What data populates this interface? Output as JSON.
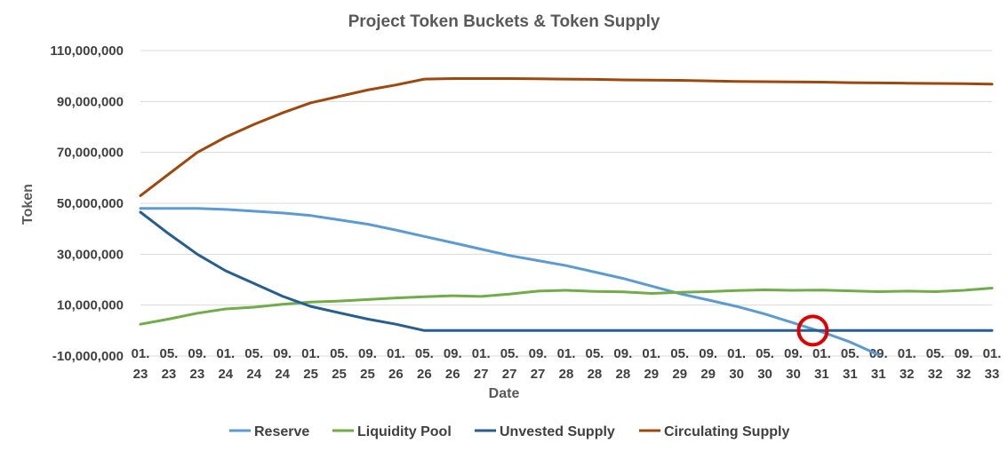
{
  "chart_data": {
    "type": "line",
    "title": "Project Token Buckets & Token Supply",
    "xlabel": "Date",
    "ylabel": "Token",
    "ylim": [
      -10000000,
      110000000
    ],
    "y_ticks": [
      "-10,000,000",
      "10,000,000",
      "30,000,000",
      "50,000,000",
      "70,000,000",
      "90,000,000",
      "110,000,000"
    ],
    "x_ticks": [
      {
        "month": "01.",
        "year": "23"
      },
      {
        "month": "05.",
        "year": "23"
      },
      {
        "month": "09.",
        "year": "23"
      },
      {
        "month": "01.",
        "year": "24"
      },
      {
        "month": "05.",
        "year": "24"
      },
      {
        "month": "09.",
        "year": "24"
      },
      {
        "month": "01.",
        "year": "25"
      },
      {
        "month": "05.",
        "year": "25"
      },
      {
        "month": "09.",
        "year": "25"
      },
      {
        "month": "01.",
        "year": "26"
      },
      {
        "month": "05.",
        "year": "26"
      },
      {
        "month": "09.",
        "year": "26"
      },
      {
        "month": "01.",
        "year": "27"
      },
      {
        "month": "05.",
        "year": "27"
      },
      {
        "month": "09.",
        "year": "27"
      },
      {
        "month": "01.",
        "year": "28"
      },
      {
        "month": "05.",
        "year": "28"
      },
      {
        "month": "09.",
        "year": "28"
      },
      {
        "month": "01.",
        "year": "29"
      },
      {
        "month": "05.",
        "year": "29"
      },
      {
        "month": "09.",
        "year": "29"
      },
      {
        "month": "01.",
        "year": "30"
      },
      {
        "month": "05.",
        "year": "30"
      },
      {
        "month": "09.",
        "year": "30"
      },
      {
        "month": "01.",
        "year": "31"
      },
      {
        "month": "05.",
        "year": "31"
      },
      {
        "month": "09.",
        "year": "31"
      },
      {
        "month": "01.",
        "year": "32"
      },
      {
        "month": "05.",
        "year": "32"
      },
      {
        "month": "09.",
        "year": "32"
      },
      {
        "month": "01.",
        "year": "33"
      }
    ],
    "grid": true,
    "legend_position": "bottom",
    "x": [
      "01.23",
      "05.23",
      "09.23",
      "01.24",
      "05.24",
      "09.24",
      "01.25",
      "05.25",
      "09.25",
      "01.26",
      "05.26",
      "09.26",
      "01.27",
      "05.27",
      "09.27",
      "01.28",
      "05.28",
      "09.28",
      "01.29",
      "05.29",
      "09.29",
      "01.30",
      "05.30",
      "09.30",
      "01.31",
      "05.31",
      "09.31",
      "01.32",
      "05.32",
      "09.32",
      "01.33"
    ],
    "series": [
      {
        "name": "Reserve",
        "color": "#5b9bd5",
        "values": [
          48000000,
          48000000,
          48000000,
          47600000,
          46900000,
          46200000,
          45200000,
          43500000,
          41800000,
          39500000,
          37000000,
          34500000,
          32000000,
          29500000,
          27500000,
          25500000,
          23000000,
          20500000,
          17500000,
          14500000,
          12000000,
          9500000,
          6500000,
          3000000,
          -500000,
          -4500000,
          -9500000,
          null,
          null,
          null,
          null
        ]
      },
      {
        "name": "Liquidity Pool",
        "color": "#70ad47",
        "values": [
          2500000,
          4500000,
          6800000,
          8500000,
          9200000,
          10300000,
          11200000,
          11600000,
          12200000,
          12800000,
          13300000,
          13700000,
          13400000,
          14300000,
          15500000,
          15800000,
          15400000,
          15200000,
          14600000,
          15000000,
          15300000,
          15700000,
          16000000,
          15800000,
          15900000,
          15600000,
          15300000,
          15500000,
          15300000,
          15800000,
          16700000
        ]
      },
      {
        "name": "Unvested Supply",
        "color": "#255e91",
        "values": [
          46500000,
          38000000,
          30000000,
          23500000,
          18500000,
          13500000,
          9500000,
          7000000,
          4500000,
          2500000,
          0,
          0,
          0,
          0,
          0,
          0,
          0,
          0,
          0,
          0,
          0,
          0,
          0,
          0,
          0,
          0,
          0,
          0,
          0,
          0,
          0
        ]
      },
      {
        "name": "Circulating Supply",
        "color": "#9e480e",
        "values": [
          53000000,
          61500000,
          70000000,
          76000000,
          81000000,
          85500000,
          89500000,
          92000000,
          94500000,
          96500000,
          98800000,
          99000000,
          99000000,
          99000000,
          98900000,
          98800000,
          98700000,
          98500000,
          98400000,
          98300000,
          98100000,
          97900000,
          97800000,
          97700000,
          97600000,
          97400000,
          97300000,
          97200000,
          97100000,
          97000000,
          96800000
        ]
      }
    ],
    "annotations": [
      {
        "type": "circle",
        "color": "#e00000",
        "x": "01.31",
        "y": 0
      }
    ]
  }
}
